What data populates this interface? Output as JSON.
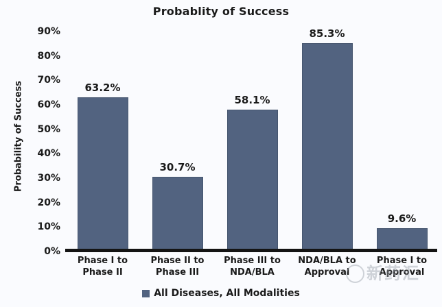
{
  "page_title": "Probablity of Success",
  "chart_data": {
    "type": "bar",
    "title": "Probablity of Success",
    "xlabel": "",
    "ylabel": "Probability of Success",
    "categories": [
      "Phase I to\nPhase II",
      "Phase II to\nPhase III",
      "Phase III to\nNDA/BLA",
      "NDA/BLA to\nApproval",
      "Phase I to\nApproval"
    ],
    "values": [
      63.2,
      30.7,
      58.1,
      85.3,
      9.6
    ],
    "data_labels": [
      "63.2%",
      "30.7%",
      "58.1%",
      "85.3%",
      "9.6%"
    ],
    "series": [
      {
        "name": "All Diseases, All Modalities",
        "values": [
          63.2,
          30.7,
          58.1,
          85.3,
          9.6
        ]
      }
    ],
    "y_ticks": [
      "0%",
      "10%",
      "20%",
      "30%",
      "40%",
      "50%",
      "60%",
      "70%",
      "80%",
      "90%"
    ],
    "ylim": [
      0,
      94
    ],
    "grid": false,
    "legend_position": "bottom",
    "legend_entries": [
      "All Diseases, All Modalities"
    ]
  },
  "legend": {
    "label": "All Diseases, All Modalities"
  },
  "watermark": {
    "text": "新药汇",
    "icon": "circle-logo"
  },
  "colors": {
    "bar": "#526380",
    "bar_border": "#46566F",
    "axis_line": "#141414",
    "text": "#1A1A1A",
    "background": "#FAFBFE",
    "watermark": "#9BA1AB"
  }
}
